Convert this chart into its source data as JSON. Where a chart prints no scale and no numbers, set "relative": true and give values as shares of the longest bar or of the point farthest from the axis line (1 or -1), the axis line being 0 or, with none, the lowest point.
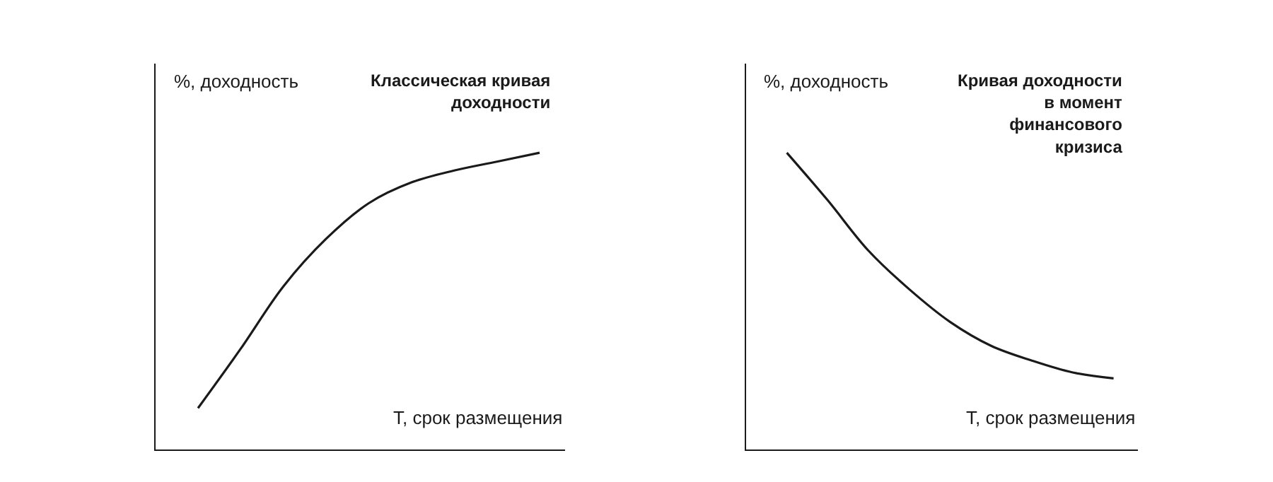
{
  "chart_data": [
    {
      "type": "line",
      "relative": true,
      "title": "Классическая кривая\nдоходности",
      "ylabel": "%, доходность",
      "xlabel": "T, срок размещения",
      "categories": [
        null,
        null,
        null,
        null,
        null,
        null,
        null,
        null,
        null
      ],
      "series": [
        {
          "color": "#1a1a1a",
          "values": [
            0.14,
            0.34,
            0.55,
            0.71,
            0.83,
            0.9,
            0.94,
            0.97,
            1.0
          ]
        }
      ],
      "marker": "none",
      "line_style": "solid"
    },
    {
      "type": "line",
      "relative": true,
      "title": "Кривая доходности\nв момент\nфинансового\nкризиса",
      "ylabel": "%, доходность",
      "xlabel": "T, срок размещения",
      "categories": [
        null,
        null,
        null,
        null,
        null,
        null,
        null,
        null,
        null
      ],
      "series": [
        {
          "color": "#1a1a1a",
          "values": [
            1.0,
            0.84,
            0.67,
            0.54,
            0.43,
            0.35,
            0.3,
            0.26,
            0.24
          ]
        }
      ],
      "marker": "none",
      "line_style": "solid"
    }
  ]
}
